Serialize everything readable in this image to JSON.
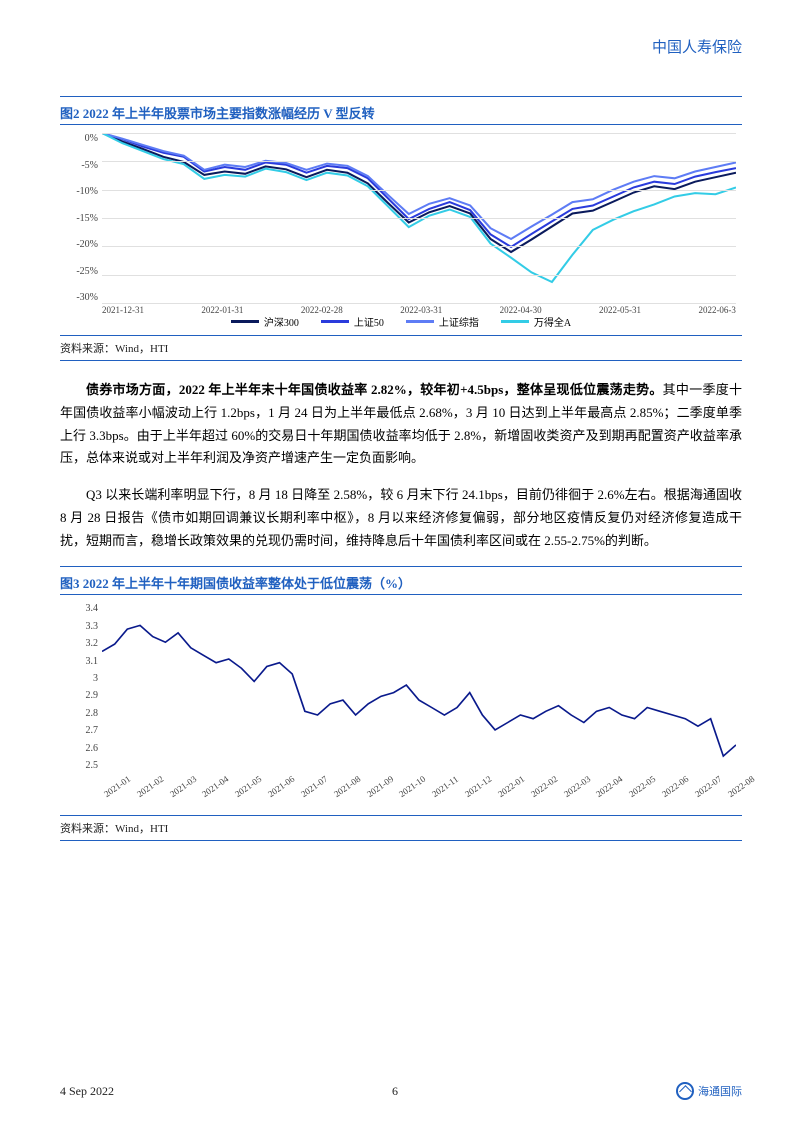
{
  "header": {
    "company": "中国人寿保险"
  },
  "figure2": {
    "title": "图2  2022 年上半年股票市场主要指数涨幅经历 V 型反转",
    "source": "资料来源：Wind，HTI",
    "type": "line",
    "ylabel_unit": "%",
    "ylim": [
      -30,
      0
    ],
    "ytick_step": 5,
    "yticks": [
      "0%",
      "-5%",
      "-10%",
      "-15%",
      "-20%",
      "-25%",
      "-30%"
    ],
    "xlabels": [
      "2021-12-31",
      "2022-01-31",
      "2022-02-28",
      "2022-03-31",
      "2022-04-30",
      "2022-05-31",
      "2022-06-3"
    ],
    "background_color": "#ffffff",
    "grid_color": "#e0e0e0",
    "series": [
      {
        "name": "沪深300",
        "color": "#0a1a5c",
        "values": [
          0,
          -1.5,
          -2.8,
          -4.2,
          -5.1,
          -7.4,
          -6.8,
          -7.2,
          -5.9,
          -6.4,
          -7.8,
          -6.5,
          -7.0,
          -8.9,
          -12.4,
          -15.8,
          -14.0,
          -12.9,
          -14.2,
          -18.7,
          -21.0,
          -18.8,
          -16.5,
          -14.2,
          -13.7,
          -12.1,
          -10.5,
          -9.4,
          -9.9,
          -8.6,
          -7.8,
          -7.0
        ]
      },
      {
        "name": "上证50",
        "color": "#2a3bdc",
        "values": [
          0,
          -1.1,
          -2.4,
          -3.5,
          -4.2,
          -6.8,
          -6.0,
          -6.5,
          -5.2,
          -5.6,
          -7.0,
          -5.8,
          -6.2,
          -8.0,
          -11.6,
          -15.2,
          -13.4,
          -12.2,
          -13.6,
          -17.9,
          -20.1,
          -17.8,
          -15.6,
          -13.4,
          -12.8,
          -11.2,
          -9.6,
          -8.6,
          -9.0,
          -7.7,
          -6.9,
          -6.2
        ]
      },
      {
        "name": "上证综指",
        "color": "#5e7cf5",
        "values": [
          0,
          -1.0,
          -2.1,
          -3.2,
          -4.0,
          -6.5,
          -5.6,
          -6.0,
          -4.9,
          -5.3,
          -6.5,
          -5.4,
          -5.8,
          -7.6,
          -11.0,
          -14.3,
          -12.5,
          -11.5,
          -12.8,
          -16.8,
          -18.7,
          -16.5,
          -14.4,
          -12.2,
          -11.7,
          -10.0,
          -8.6,
          -7.6,
          -8.0,
          -6.8,
          -6.0,
          -5.2
        ]
      },
      {
        "name": "万得全A",
        "color": "#33cce6",
        "values": [
          0,
          -1.8,
          -3.2,
          -4.6,
          -5.5,
          -8.1,
          -7.4,
          -7.7,
          -6.3,
          -6.9,
          -8.3,
          -7.0,
          -7.5,
          -9.4,
          -13.0,
          -16.6,
          -14.6,
          -13.5,
          -14.8,
          -19.5,
          -22.0,
          -24.6,
          -26.3,
          -21.5,
          -17.1,
          -15.3,
          -13.8,
          -12.6,
          -11.2,
          -10.6,
          -10.8,
          -9.6
        ]
      }
    ]
  },
  "paragraphs": {
    "p1_bold": "债券市场方面，2022 年上半年末十年国债收益率 2.82%，较年初+4.5bps，整体呈现低位震荡走势。",
    "p1_rest": "其中一季度十年国债收益率小幅波动上行 1.2bps，1 月 24 日为上半年最低点 2.68%，3 月 10 日达到上半年最高点 2.85%；二季度单季上行 3.3bps。由于上半年超过 60%的交易日十年期国债收益率均低于 2.8%，新增固收类资产及到期再配置资产收益率承压，总体来说或对上半年利润及净资产增速产生一定负面影响。",
    "p2": "Q3 以来长端利率明显下行，8 月 18 日降至 2.58%，较 6 月末下行 24.1bps，目前仍徘徊于 2.6%左右。根据海通固收 8 月 28 日报告《债市如期回调兼议长期利率中枢》，8 月以来经济修复偏弱，部分地区疫情反复仍对经济修复造成干扰，短期而言，稳增长政策效果的兑现仍需时间，维持降息后十年国债利率区间或在 2.55-2.75%的判断。"
  },
  "figure3": {
    "title": "图3  2022 年上半年十年期国债收益率整体处于低位震荡（%）",
    "source": "资料来源：Wind，HTI",
    "type": "line",
    "ylim": [
      2.5,
      3.4
    ],
    "yticks": [
      "3.4",
      "3.3",
      "3.2",
      "3.1",
      "3",
      "2.9",
      "2.8",
      "2.7",
      "2.6",
      "2.5"
    ],
    "xlabels": [
      "2021-01",
      "2021-02",
      "2021-03",
      "2021-04",
      "2021-05",
      "2021-06",
      "2021-07",
      "2021-08",
      "2021-09",
      "2021-10",
      "2021-11",
      "2021-12",
      "2022-01",
      "2022-02",
      "2022-03",
      "2022-04",
      "2022-05",
      "2022-06",
      "2022-07",
      "2022-08"
    ],
    "color": "#0a1a8c",
    "background_color": "#ffffff",
    "values": [
      3.14,
      3.18,
      3.26,
      3.28,
      3.22,
      3.19,
      3.24,
      3.16,
      3.12,
      3.08,
      3.1,
      3.05,
      2.98,
      3.06,
      3.08,
      3.02,
      2.82,
      2.8,
      2.86,
      2.88,
      2.8,
      2.86,
      2.9,
      2.92,
      2.96,
      2.88,
      2.84,
      2.8,
      2.84,
      2.92,
      2.8,
      2.72,
      2.76,
      2.8,
      2.78,
      2.82,
      2.85,
      2.8,
      2.76,
      2.82,
      2.84,
      2.8,
      2.78,
      2.84,
      2.82,
      2.8,
      2.78,
      2.74,
      2.78,
      2.58,
      2.64
    ]
  },
  "footer": {
    "date": "4 Sep 2022",
    "page": "6",
    "logo": "海通国际"
  }
}
